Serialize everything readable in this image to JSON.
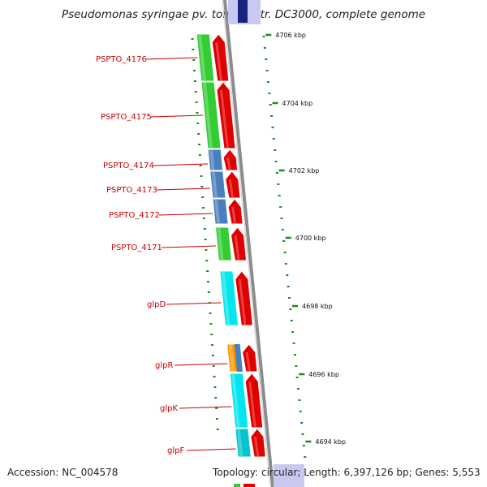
{
  "title": "Pseudomonas syringae pv. tomato str. DC3000, complete genome",
  "footer": {
    "accession": "Accession: NC_004578",
    "summary": "Topology: circular; Length: 6,397,126 bp; Genes: 5,553"
  },
  "colors": {
    "backbone": "#8c8c8c",
    "tick": "#1f8a1f",
    "gene_label": "#cc0000",
    "cds_arrow": "#e00000",
    "cog_green": "#33cc33",
    "cog_blue": "#4a7fbf",
    "cog_cyan": "#00e5ee",
    "cog_teal": "#00c5cd",
    "cog_orange": "#ff9900",
    "cog_lavender": "#c8c8f0"
  },
  "scale_labels": [
    "4706 kbp",
    "4704 kbp",
    "4702 kbp",
    "4700 kbp",
    "4698 kbp",
    "4696 kbp",
    "4694 kbp"
  ],
  "genes": [
    {
      "label": "PSPTO_4176",
      "cog": "cog_green"
    },
    {
      "label": "PSPTO_4175",
      "cog": "cog_green"
    },
    {
      "label": "PSPTO_4174",
      "cog": "cog_blue"
    },
    {
      "label": "PSPTO_4173",
      "cog": "cog_blue"
    },
    {
      "label": "PSPTO_4172",
      "cog": "cog_blue"
    },
    {
      "label": "PSPTO_4171",
      "cog": "cog_green"
    },
    {
      "label": "glpD",
      "cog": "cog_cyan"
    },
    {
      "label": "glpR",
      "cog": "cog_orange"
    },
    {
      "label": "glpK",
      "cog": "cog_cyan"
    },
    {
      "label": "glpF",
      "cog": "cog_teal"
    }
  ]
}
